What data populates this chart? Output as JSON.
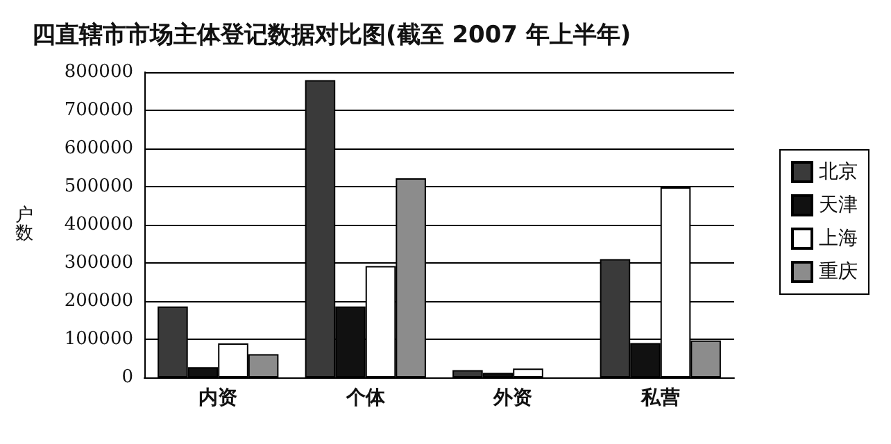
{
  "chart_data": {
    "type": "bar",
    "title": "四直辖市市场主体登记数据对比图(截至 2007 年上半年)",
    "ylabel": "户数",
    "categories": [
      "内资",
      "个体",
      "外资",
      "私营"
    ],
    "series": [
      {
        "name": "北京",
        "color": "#3a3a3a",
        "values": [
          186000,
          779000,
          19000,
          310000
        ]
      },
      {
        "name": "天津",
        "color": "#111111",
        "values": [
          27000,
          186000,
          12000,
          90000
        ]
      },
      {
        "name": "上海",
        "color": "#ffffff",
        "values": [
          89000,
          292000,
          23000,
          498000
        ]
      },
      {
        "name": "重庆",
        "color": "#8c8c8c",
        "values": [
          61000,
          522000,
          null,
          97000
        ]
      }
    ],
    "ylim": [
      0,
      800000
    ],
    "yticks": [
      0,
      100000,
      200000,
      300000,
      400000,
      500000,
      600000,
      700000,
      800000
    ],
    "grid": "y",
    "legend": "right"
  }
}
